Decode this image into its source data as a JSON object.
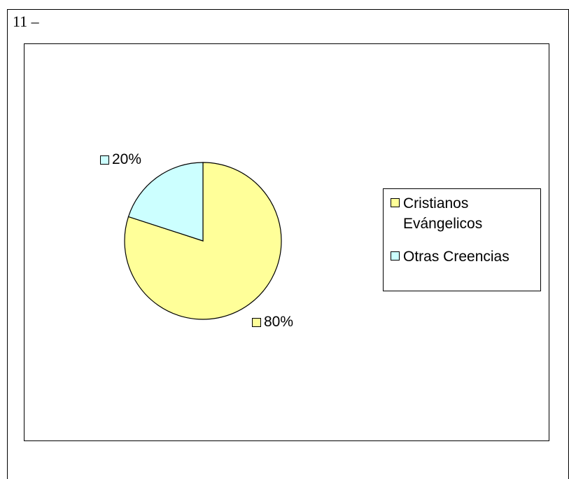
{
  "heading": "11 –",
  "chart_data": {
    "type": "pie",
    "categories": [
      "Cristianos Evángelicos",
      "Otras Creencias"
    ],
    "values": [
      80,
      20
    ],
    "data_labels": [
      "80%",
      "20%"
    ],
    "colors": [
      "#ffff99",
      "#ccffff"
    ],
    "legend": [
      "Cristianos Evángelicos",
      "Otras Creencias"
    ],
    "legend_position": "right"
  }
}
